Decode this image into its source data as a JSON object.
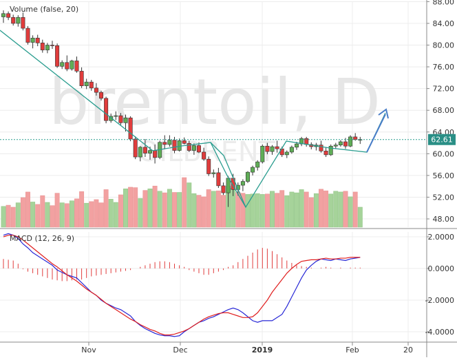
{
  "watermark": {
    "symbol": "brentoil, D",
    "sub": "OILBRENT"
  },
  "price_label": {
    "text": "62.61",
    "color": "#2a8f86"
  },
  "colors": {
    "up": "#5fad56",
    "down": "#e03c3c",
    "vol_up": "#a6d39a",
    "vol_down": "#f2a1a1",
    "macd": "#2727d6",
    "signal": "#e01e1e",
    "hist_up": "#5fad56",
    "hist_down": "#e03c3c",
    "trendline": "#2a9d8f",
    "arrow": "#4a7ec8"
  },
  "chart_data": [
    {
      "type": "candlestick",
      "title": "brentoil, D",
      "legend": "Volume (false, 20)",
      "y_ticks": [
        "48.00",
        "52.00",
        "56.00",
        "60.00",
        "64.00",
        "68.00",
        "72.00",
        "76.00",
        "80.00",
        "84.00",
        "88.00"
      ],
      "x_ticks": [
        "Nov",
        "Dec",
        "2019",
        "Jan",
        "Feb",
        "20"
      ],
      "last_price": 62.61,
      "ohlc": [
        [
          85.2,
          86.4,
          84.1,
          85.8
        ],
        [
          85.8,
          86.2,
          84.6,
          85.1
        ],
        [
          85.1,
          85.6,
          83.6,
          84.0
        ],
        [
          84.0,
          85.5,
          83.4,
          85.1
        ],
        [
          85.1,
          86.0,
          82.7,
          83.1
        ],
        [
          83.1,
          83.5,
          80.1,
          80.5
        ],
        [
          80.5,
          81.8,
          79.4,
          81.3
        ],
        [
          81.3,
          81.9,
          79.8,
          80.4
        ],
        [
          80.4,
          81.0,
          78.6,
          79.1
        ],
        [
          79.1,
          80.4,
          78.5,
          80.0
        ],
        [
          80.0,
          80.8,
          79.3,
          79.9
        ],
        [
          79.9,
          80.3,
          75.8,
          76.1
        ],
        [
          76.1,
          77.2,
          75.6,
          76.8
        ],
        [
          76.8,
          78.1,
          75.2,
          75.6
        ],
        [
          75.6,
          77.3,
          75.3,
          77.1
        ],
        [
          77.1,
          77.9,
          74.9,
          75.2
        ],
        [
          75.2,
          75.9,
          72.1,
          72.5
        ],
        [
          72.5,
          73.8,
          71.9,
          73.2
        ],
        [
          73.2,
          73.6,
          71.6,
          72.1
        ],
        [
          72.1,
          73.0,
          70.7,
          71.3
        ],
        [
          71.3,
          71.6,
          69.8,
          70.2
        ],
        [
          70.2,
          70.5,
          65.6,
          66.1
        ],
        [
          66.1,
          67.4,
          65.7,
          66.9
        ],
        [
          66.9,
          67.8,
          66.2,
          67.0
        ],
        [
          67.0,
          67.5,
          65.3,
          65.7
        ],
        [
          65.7,
          67.2,
          64.1,
          66.6
        ],
        [
          66.6,
          66.9,
          62.3,
          62.7
        ],
        [
          62.7,
          63.2,
          59.0,
          59.4
        ],
        [
          59.4,
          61.4,
          58.6,
          61.2
        ],
        [
          61.2,
          62.7,
          59.4,
          60.1
        ],
        [
          60.1,
          61.3,
          58.9,
          60.6
        ],
        [
          60.6,
          61.7,
          58.2,
          59.3
        ],
        [
          59.3,
          62.4,
          59.0,
          62.1
        ],
        [
          62.1,
          63.4,
          60.8,
          61.7
        ],
        [
          61.7,
          63.4,
          61.3,
          62.5
        ],
        [
          62.5,
          63.1,
          60.1,
          60.6
        ],
        [
          60.6,
          62.8,
          60.4,
          62.4
        ],
        [
          62.4,
          63.0,
          61.7,
          61.9
        ],
        [
          61.9,
          62.4,
          60.3,
          60.6
        ],
        [
          60.6,
          61.9,
          59.8,
          61.5
        ],
        [
          61.5,
          62.1,
          60.1,
          60.3
        ],
        [
          60.3,
          61.1,
          58.7,
          59.0
        ],
        [
          59.0,
          59.5,
          55.9,
          56.3
        ],
        [
          56.3,
          57.1,
          55.6,
          56.5
        ],
        [
          56.5,
          57.4,
          53.7,
          54.1
        ],
        [
          54.1,
          54.7,
          52.4,
          52.8
        ],
        [
          52.8,
          55.9,
          50.2,
          55.5
        ],
        [
          55.5,
          56.3,
          52.2,
          53.4
        ],
        [
          53.4,
          54.7,
          52.3,
          54.2
        ],
        [
          54.2,
          55.3,
          53.1,
          54.9
        ],
        [
          54.9,
          56.8,
          54.6,
          56.6
        ],
        [
          56.6,
          57.8,
          56.0,
          57.5
        ],
        [
          57.5,
          58.8,
          56.9,
          58.5
        ],
        [
          58.5,
          61.7,
          58.2,
          61.4
        ],
        [
          61.4,
          62.0,
          59.9,
          60.4
        ],
        [
          60.4,
          61.6,
          59.8,
          61.3
        ],
        [
          61.3,
          62.4,
          60.2,
          60.9
        ],
        [
          60.9,
          61.3,
          59.4,
          59.8
        ],
        [
          59.8,
          60.6,
          59.2,
          60.3
        ],
        [
          60.3,
          61.5,
          60.0,
          61.2
        ],
        [
          61.2,
          62.2,
          60.7,
          61.8
        ],
        [
          61.8,
          63.1,
          61.4,
          62.8
        ],
        [
          62.8,
          63.1,
          61.3,
          61.7
        ],
        [
          61.7,
          62.1,
          60.8,
          61.3
        ],
        [
          61.3,
          62.0,
          60.6,
          61.6
        ],
        [
          61.6,
          62.4,
          60.2,
          60.5
        ],
        [
          60.5,
          61.2,
          59.4,
          59.8
        ],
        [
          59.8,
          61.7,
          59.6,
          61.4
        ],
        [
          61.4,
          62.0,
          60.9,
          61.6
        ],
        [
          61.6,
          62.5,
          61.3,
          62.2
        ],
        [
          62.2,
          62.9,
          60.9,
          61.4
        ],
        [
          61.4,
          63.4,
          61.2,
          63.1
        ],
        [
          63.1,
          63.8,
          62.4,
          62.6
        ],
        [
          62.6,
          63.1,
          61.8,
          62.61
        ]
      ],
      "volume": [
        [
          5.2,
          0
        ],
        [
          5.5,
          1
        ],
        [
          5.0,
          1
        ],
        [
          6.1,
          0
        ],
        [
          7.4,
          1
        ],
        [
          8.8,
          1
        ],
        [
          6.3,
          0
        ],
        [
          5.7,
          1
        ],
        [
          7.9,
          1
        ],
        [
          6.2,
          0
        ],
        [
          5.4,
          1
        ],
        [
          8.5,
          1
        ],
        [
          6.1,
          0
        ],
        [
          5.9,
          1
        ],
        [
          6.6,
          0
        ],
        [
          7.1,
          1
        ],
        [
          8.9,
          1
        ],
        [
          6.0,
          0
        ],
        [
          6.4,
          1
        ],
        [
          6.9,
          1
        ],
        [
          6.1,
          1
        ],
        [
          9.4,
          1
        ],
        [
          7.0,
          0
        ],
        [
          6.2,
          0
        ],
        [
          8.1,
          1
        ],
        [
          9.6,
          0
        ],
        [
          10.0,
          1
        ],
        [
          9.9,
          1
        ],
        [
          7.2,
          0
        ],
        [
          9.2,
          1
        ],
        [
          9.6,
          0
        ],
        [
          10.3,
          1
        ],
        [
          9.0,
          0
        ],
        [
          8.6,
          1
        ],
        [
          9.5,
          0
        ],
        [
          8.7,
          1
        ],
        [
          8.7,
          0
        ],
        [
          12.4,
          1
        ],
        [
          11.1,
          0
        ],
        [
          8.4,
          0
        ],
        [
          8.0,
          1
        ],
        [
          7.6,
          1
        ],
        [
          9.4,
          1
        ],
        [
          9.0,
          0
        ],
        [
          9.1,
          1
        ],
        [
          8.0,
          1
        ],
        [
          10.3,
          0
        ],
        [
          9.8,
          0
        ],
        [
          8.7,
          1
        ],
        [
          8.5,
          1
        ],
        [
          8.2,
          0
        ],
        [
          8.3,
          0
        ],
        [
          8.4,
          0
        ],
        [
          8.2,
          0
        ],
        [
          8.3,
          1
        ],
        [
          9.0,
          0
        ],
        [
          8.5,
          1
        ],
        [
          9.2,
          1
        ],
        [
          7.9,
          0
        ],
        [
          8.8,
          0
        ],
        [
          8.6,
          0
        ],
        [
          9.4,
          0
        ],
        [
          8.8,
          1
        ],
        [
          7.4,
          1
        ],
        [
          8.4,
          0
        ],
        [
          9.5,
          1
        ],
        [
          9.1,
          1
        ],
        [
          8.3,
          0
        ],
        [
          9.0,
          0
        ],
        [
          8.8,
          0
        ],
        [
          9.0,
          1
        ],
        [
          7.6,
          0
        ],
        [
          8.8,
          1
        ],
        [
          5.0,
          0
        ]
      ],
      "ylim": [
        46.0,
        88.5
      ]
    },
    {
      "type": "line",
      "title": "MACD (12, 26, 9)",
      "y_ticks": [
        "-4.0000",
        "-2.0000",
        "0.0000",
        "2.0000"
      ],
      "ylim": [
        -4.5,
        2.1
      ],
      "series": [
        {
          "name": "MACD",
          "values": [
            2.1,
            2.2,
            2.1,
            1.9,
            1.55,
            1.3,
            1.0,
            0.8,
            0.6,
            0.4,
            0.2,
            -0.1,
            -0.25,
            -0.4,
            -0.5,
            -0.6,
            -0.9,
            -1.2,
            -1.5,
            -1.7,
            -2.0,
            -2.2,
            -2.35,
            -2.5,
            -2.6,
            -2.8,
            -3.0,
            -3.35,
            -3.6,
            -3.8,
            -3.95,
            -4.1,
            -4.2,
            -4.25,
            -4.25,
            -4.3,
            -4.25,
            -4.0,
            -3.8,
            -3.6,
            -3.4,
            -3.3,
            -3.15,
            -3.05,
            -2.9,
            -2.75,
            -2.6,
            -2.5,
            -2.6,
            -2.8,
            -3.05,
            -3.3,
            -3.4,
            -3.3,
            -3.3,
            -3.3,
            -3.1,
            -2.9,
            -2.4,
            -1.8,
            -1.2,
            -0.6,
            -0.1,
            0.2,
            0.45,
            0.6,
            0.55,
            0.5,
            0.6,
            0.55,
            0.5,
            0.6,
            0.65,
            0.7
          ]
        },
        {
          "name": "Signal",
          "values": [
            2.0,
            2.1,
            2.1,
            2.0,
            1.8,
            1.55,
            1.3,
            1.05,
            0.8,
            0.55,
            0.3,
            0.1,
            -0.15,
            -0.4,
            -0.6,
            -0.8,
            -1.05,
            -1.3,
            -1.5,
            -1.7,
            -1.95,
            -2.2,
            -2.4,
            -2.6,
            -2.8,
            -3.0,
            -3.2,
            -3.35,
            -3.55,
            -3.7,
            -3.85,
            -3.95,
            -4.1,
            -4.2,
            -4.2,
            -4.15,
            -4.05,
            -3.95,
            -3.8,
            -3.6,
            -3.4,
            -3.2,
            -3.05,
            -2.95,
            -2.85,
            -2.8,
            -2.8,
            -2.9,
            -3.0,
            -3.1,
            -3.1,
            -3.05,
            -2.8,
            -2.4,
            -2.0,
            -1.5,
            -1.1,
            -0.7,
            -0.3,
            0.0,
            0.25,
            0.45,
            0.5,
            0.55,
            0.55,
            0.6,
            0.65,
            0.6,
            0.6,
            0.65,
            0.65,
            0.7,
            0.7,
            0.7
          ]
        },
        {
          "name": "Histogram",
          "values": [
            0.6,
            0.55,
            0.5,
            0.3,
            -0.05,
            -0.2,
            -0.3,
            -0.4,
            -0.5,
            -0.6,
            -0.7,
            -0.75,
            -0.8,
            -0.8,
            -0.75,
            -0.7,
            -0.7,
            -0.6,
            -0.5,
            -0.45,
            -0.4,
            -0.35,
            -0.3,
            -0.25,
            -0.2,
            -0.15,
            -0.1,
            0.0,
            0.1,
            0.2,
            0.3,
            0.4,
            0.45,
            0.45,
            0.4,
            0.3,
            0.2,
            0.1,
            -0.1,
            -0.2,
            -0.3,
            -0.4,
            -0.4,
            -0.3,
            -0.2,
            -0.1,
            0.1,
            0.2,
            0.4,
            0.6,
            0.8,
            1.0,
            1.2,
            1.3,
            1.25,
            1.1,
            0.9,
            0.7,
            0.5,
            0.35,
            0.2,
            0.15,
            0.1,
            0.05,
            0.0,
            0.05,
            0.1,
            0.05,
            0.0,
            0.05,
            0.0,
            0.05,
            0.05,
            0.05
          ]
        }
      ]
    }
  ]
}
